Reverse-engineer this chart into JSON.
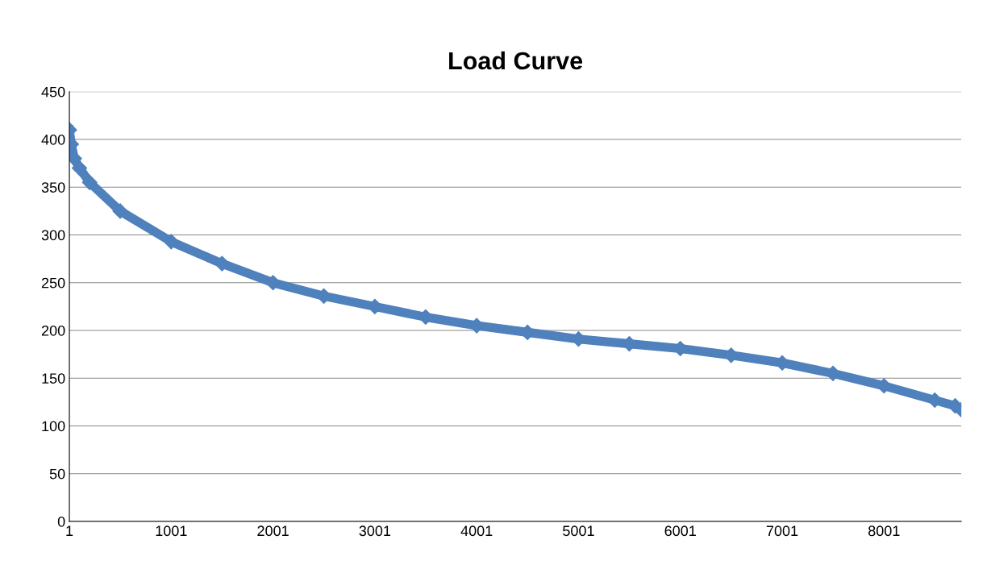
{
  "chart_data": {
    "type": "line",
    "title": "Load Curve",
    "x": [
      1,
      20,
      50,
      100,
      200,
      500,
      1001,
      1500,
      2001,
      2500,
      3001,
      3500,
      4001,
      4500,
      5001,
      5500,
      6001,
      6500,
      7001,
      7500,
      8001,
      8500,
      8700,
      8760
    ],
    "series": [
      {
        "color": "#4f81bd",
        "values": [
          410,
          395,
          380,
          370,
          355,
          325,
          293,
          270,
          250,
          236,
          225,
          214,
          205,
          198,
          191,
          186,
          181,
          174,
          166,
          155,
          142,
          127,
          121,
          117
        ]
      }
    ],
    "xlim": [
      1,
      8760
    ],
    "xticks": [
      1,
      1001,
      2001,
      3001,
      4001,
      5001,
      6001,
      7001,
      8001
    ],
    "ylim": [
      0,
      450
    ],
    "yticks": [
      0,
      50,
      100,
      150,
      200,
      250,
      300,
      350,
      400,
      450
    ],
    "grid": "y",
    "marker": "diamond",
    "line_style": "solid"
  }
}
